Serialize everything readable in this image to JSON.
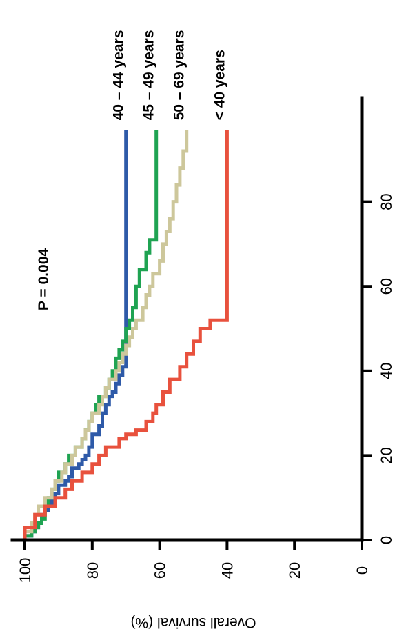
{
  "chart_data": {
    "type": "line",
    "subtype": "kaplan-meier",
    "orientation": "rotated-90-clockwise",
    "title": "",
    "xlabel": "",
    "ylabel": "Overall survival (%)",
    "xlim": [
      0,
      100
    ],
    "ylim": [
      0,
      100
    ],
    "x_ticks": [
      0,
      20,
      40,
      60,
      80
    ],
    "x_tick_labels": [
      "0",
      "20",
      "40",
      "60",
      "80"
    ],
    "y_ticks": [
      0,
      20,
      40,
      60,
      80,
      100
    ],
    "y_tick_labels": [
      "0",
      "20",
      "40",
      "60",
      "80",
      "100"
    ],
    "annotation": "P = 0.004",
    "grid": false,
    "legend": "inline labels at line ends",
    "series": [
      {
        "name": "40 – 44 years",
        "color": "#2e5aa8",
        "x": [
          0,
          1,
          2,
          3,
          4,
          5,
          6,
          7,
          8,
          9,
          10,
          11,
          12,
          13,
          14,
          15,
          16,
          17,
          18,
          19,
          20,
          22,
          24,
          25,
          27,
          29,
          30,
          32,
          34,
          35,
          37,
          39,
          40,
          41,
          97
        ],
        "y": [
          100,
          98,
          97,
          96,
          95,
          95,
          94,
          93,
          92,
          92,
          91,
          90,
          90,
          88,
          87,
          86,
          86,
          84,
          83,
          82,
          81,
          80,
          80,
          78,
          77,
          77,
          76,
          75,
          74,
          73,
          72,
          71,
          71,
          70,
          70
        ]
      },
      {
        "name": "45 – 49 years",
        "color": "#1fa352",
        "x": [
          0,
          1,
          2,
          3,
          4,
          5,
          6,
          8,
          10,
          12,
          14,
          16,
          18,
          20,
          22,
          24,
          26,
          28,
          30,
          32,
          34,
          36,
          38,
          40,
          43,
          45,
          47,
          50,
          52,
          55,
          60,
          64,
          68,
          71,
          97
        ],
        "y": [
          100,
          98,
          97,
          96,
          95,
          94,
          94,
          93,
          92,
          91,
          90,
          88,
          87,
          85,
          83,
          82,
          81,
          80,
          79,
          78,
          76,
          75,
          74,
          73,
          72,
          71,
          70,
          69,
          68,
          67,
          66,
          64,
          63,
          61,
          61
        ]
      },
      {
        "name": "50 – 69 years",
        "color": "#cdc79b",
        "x": [
          0,
          2,
          4,
          6,
          8,
          10,
          12,
          14,
          16,
          18,
          20,
          22,
          24,
          26,
          28,
          30,
          32,
          34,
          36,
          38,
          40,
          42,
          44,
          46,
          48,
          50,
          52,
          55,
          58,
          60,
          63,
          66,
          70,
          73,
          76,
          80,
          84,
          88,
          92,
          95,
          97
        ],
        "y": [
          100,
          98,
          97,
          96,
          94,
          92,
          91,
          89,
          88,
          86,
          85,
          83,
          82,
          81,
          80,
          78,
          77,
          76,
          75,
          73,
          72,
          71,
          70,
          69,
          68,
          67,
          65,
          64,
          63,
          62,
          60,
          59,
          58,
          57,
          56,
          55,
          54,
          53,
          52,
          52,
          52
        ]
      },
      {
        "name": "< 40 years",
        "color": "#e8513d",
        "x": [
          0,
          3,
          6,
          8,
          10,
          12,
          14,
          16,
          18,
          20,
          22,
          24,
          25,
          26,
          28,
          30,
          32,
          35,
          38,
          41,
          44,
          47,
          50,
          52,
          97
        ],
        "y": [
          100,
          97,
          94,
          91,
          88,
          86,
          83,
          80,
          78,
          76,
          72,
          70,
          67,
          64,
          62,
          61,
          59,
          57,
          54,
          52,
          50,
          48,
          45,
          40,
          40
        ]
      }
    ]
  }
}
